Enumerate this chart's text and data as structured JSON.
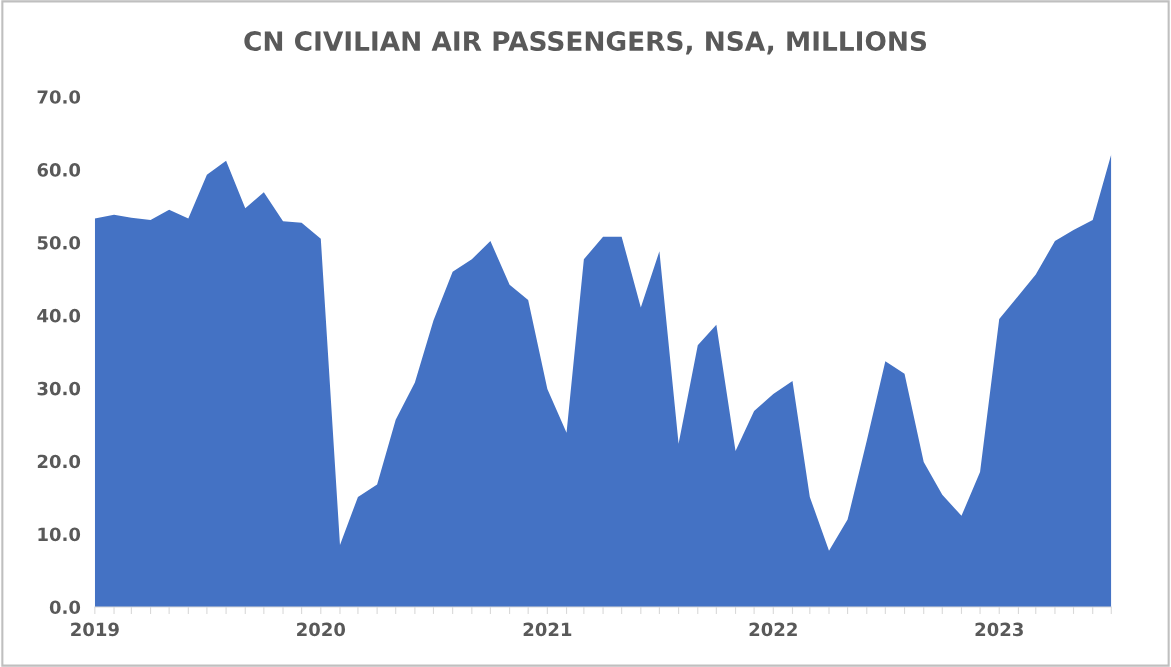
{
  "chart_data": {
    "type": "area",
    "title": "CN CIVILIAN AIR PASSENGERS, NSA, MILLIONS",
    "x": [
      "2019-01",
      "2019-02",
      "2019-03",
      "2019-04",
      "2019-05",
      "2019-06",
      "2019-07",
      "2019-08",
      "2019-09",
      "2019-10",
      "2019-11",
      "2019-12",
      "2020-01",
      "2020-02",
      "2020-03",
      "2020-04",
      "2020-05",
      "2020-06",
      "2020-07",
      "2020-08",
      "2020-09",
      "2020-10",
      "2020-11",
      "2020-12",
      "2021-01",
      "2021-02",
      "2021-03",
      "2021-04",
      "2021-05",
      "2021-06",
      "2021-07",
      "2021-08",
      "2021-09",
      "2021-10",
      "2021-11",
      "2021-12",
      "2022-01",
      "2022-02",
      "2022-03",
      "2022-04",
      "2022-05",
      "2022-06",
      "2022-07",
      "2022-08",
      "2022-09",
      "2022-10",
      "2022-11",
      "2022-12",
      "2023-01",
      "2023-02",
      "2023-03",
      "2023-04",
      "2023-05",
      "2023-06",
      "2023-07"
    ],
    "series": [
      {
        "color": "#4472c4",
        "values": [
          53.3,
          53.8,
          53.4,
          53.1,
          54.5,
          53.3,
          59.3,
          61.2,
          54.7,
          56.9,
          52.9,
          52.7,
          50.5,
          8.5,
          15.1,
          16.8,
          25.7,
          30.8,
          39.3,
          46.0,
          47.7,
          50.2,
          44.2,
          42.1,
          29.9,
          23.9,
          47.7,
          50.8,
          50.8,
          41.1,
          48.8,
          22.4,
          35.9,
          38.7,
          21.4,
          26.9,
          29.2,
          31.0,
          15.1,
          7.7,
          12.0,
          22.8,
          33.7,
          32.0,
          19.9,
          15.4,
          12.5,
          18.5,
          39.5,
          42.7,
          45.6,
          50.2,
          51.7,
          53.1,
          62.1
        ]
      }
    ],
    "xlim": [
      "2019-01",
      "2023-07"
    ],
    "xticks": [
      {
        "value": "2019-01",
        "label": "2019"
      },
      {
        "value": "2019-02",
        "label": null
      },
      {
        "value": "2019-03",
        "label": null
      },
      {
        "value": "2019-04",
        "label": null
      },
      {
        "value": "2019-05",
        "label": null
      },
      {
        "value": "2019-06",
        "label": null
      },
      {
        "value": "2019-07",
        "label": null
      },
      {
        "value": "2019-08",
        "label": null
      },
      {
        "value": "2019-09",
        "label": null
      },
      {
        "value": "2019-10",
        "label": null
      },
      {
        "value": "2019-11",
        "label": null
      },
      {
        "value": "2019-12",
        "label": null
      },
      {
        "value": "2020-01",
        "label": "2020"
      },
      {
        "value": "2020-02",
        "label": null
      },
      {
        "value": "2020-03",
        "label": null
      },
      {
        "value": "2020-04",
        "label": null
      },
      {
        "value": "2020-05",
        "label": null
      },
      {
        "value": "2020-06",
        "label": null
      },
      {
        "value": "2020-07",
        "label": null
      },
      {
        "value": "2020-08",
        "label": null
      },
      {
        "value": "2020-09",
        "label": null
      },
      {
        "value": "2020-10",
        "label": null
      },
      {
        "value": "2020-11",
        "label": null
      },
      {
        "value": "2020-12",
        "label": null
      },
      {
        "value": "2021-01",
        "label": "2021"
      },
      {
        "value": "2021-02",
        "label": null
      },
      {
        "value": "2021-03",
        "label": null
      },
      {
        "value": "2021-04",
        "label": null
      },
      {
        "value": "2021-05",
        "label": null
      },
      {
        "value": "2021-06",
        "label": null
      },
      {
        "value": "2021-07",
        "label": null
      },
      {
        "value": "2021-08",
        "label": null
      },
      {
        "value": "2021-09",
        "label": null
      },
      {
        "value": "2021-10",
        "label": null
      },
      {
        "value": "2021-11",
        "label": null
      },
      {
        "value": "2021-12",
        "label": null
      },
      {
        "value": "2022-01",
        "label": "2022"
      },
      {
        "value": "2022-02",
        "label": null
      },
      {
        "value": "2022-03",
        "label": null
      },
      {
        "value": "2022-04",
        "label": null
      },
      {
        "value": "2022-05",
        "label": null
      },
      {
        "value": "2022-06",
        "label": null
      },
      {
        "value": "2022-07",
        "label": null
      },
      {
        "value": "2022-08",
        "label": null
      },
      {
        "value": "2022-09",
        "label": null
      },
      {
        "value": "2022-10",
        "label": null
      },
      {
        "value": "2022-11",
        "label": null
      },
      {
        "value": "2022-12",
        "label": null
      },
      {
        "value": "2023-01",
        "label": "2023"
      },
      {
        "value": "2023-02",
        "label": null
      },
      {
        "value": "2023-03",
        "label": null
      },
      {
        "value": "2023-04",
        "label": null
      },
      {
        "value": "2023-05",
        "label": null
      },
      {
        "value": "2023-06",
        "label": null
      },
      {
        "value": "2023-07",
        "label": null
      }
    ],
    "ylim": [
      0,
      70
    ],
    "yticks": [
      {
        "value": 0,
        "label": "0.0"
      },
      {
        "value": 10,
        "label": "10.0"
      },
      {
        "value": 20,
        "label": "20.0"
      },
      {
        "value": 30,
        "label": "30.0"
      },
      {
        "value": 40,
        "label": "40.0"
      },
      {
        "value": 50,
        "label": "50.0"
      },
      {
        "value": 60,
        "label": "60.0"
      },
      {
        "value": 70,
        "label": "70.0"
      }
    ]
  }
}
